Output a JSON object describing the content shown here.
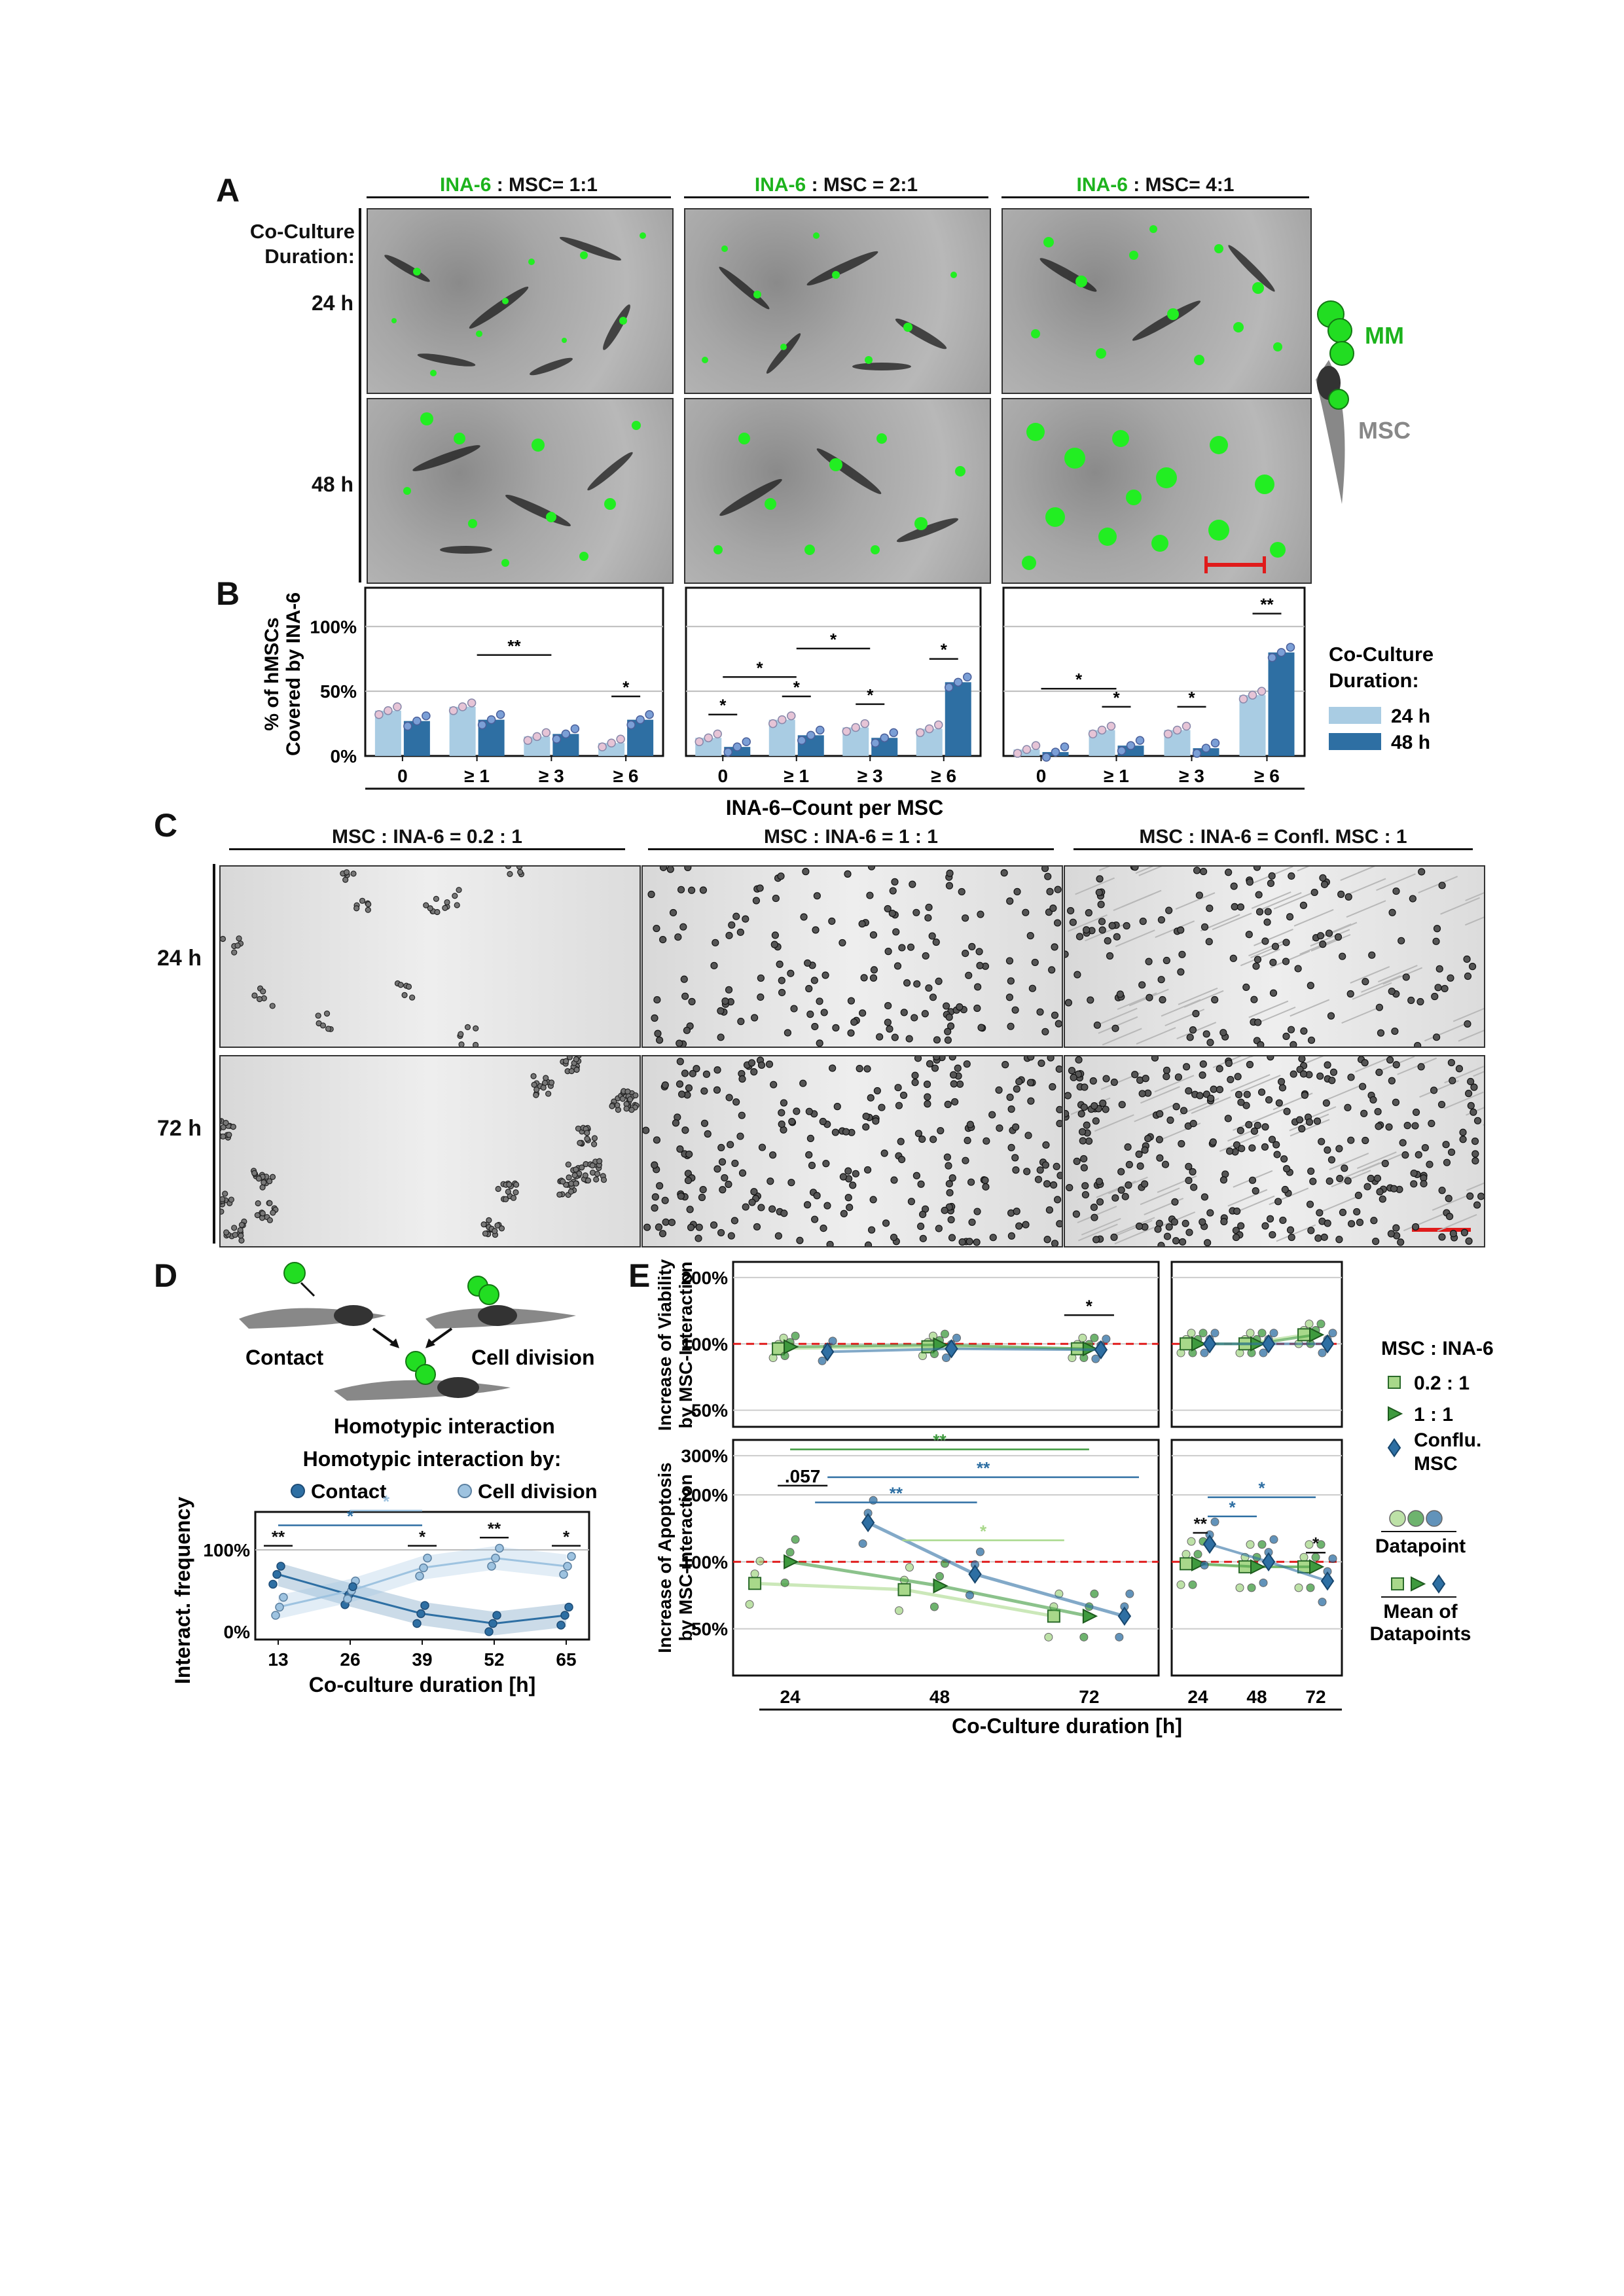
{
  "panel_labels": {
    "a": "A",
    "b": "B",
    "c": "C",
    "d": "D",
    "e": "E"
  },
  "panelA": {
    "ratio_prefix": "INA-6",
    "ratios": [
      " : MSC= 1:1",
      " : MSC = 2:1",
      " : MSC= 4:1"
    ],
    "row_header": [
      "Co-Culture",
      "Duration:"
    ],
    "rows": [
      "24 h",
      "48 h"
    ],
    "schematic": {
      "mm_label": "MM",
      "msc_label": "MSC"
    },
    "colors": {
      "ina6": "#1db31d",
      "scale_bar": "#e01b1b"
    }
  },
  "panelB": {
    "ylabel_line1": "% of hMSCs",
    "ylabel_line2": "Covered by INA-6",
    "yticks": [
      "100%",
      "50%",
      "0%"
    ],
    "xticks": [
      "0",
      "≥ 1",
      "≥ 3",
      "≥ 6"
    ],
    "xlabel": "INA-6–Count per MSC",
    "legend": {
      "title1": "Co-Culture",
      "title2": "Duration:",
      "items": [
        "24 h",
        "48 h"
      ]
    },
    "colors": {
      "h24": "#a9cce3",
      "h48": "#2e6fa3"
    }
  },
  "panelC": {
    "headers": [
      "MSC : INA-6 = 0.2 : 1",
      "MSC : INA-6 = 1 : 1",
      "MSC : INA-6 = Confl. MSC : 1"
    ],
    "rows": [
      "24 h",
      "72 h"
    ]
  },
  "panelD": {
    "schematic": {
      "contact": "Contact",
      "division": "Cell division",
      "homotypic": "Homotypic interaction"
    },
    "legend_title": "Homotypic interaction by:",
    "legend_items": [
      "Contact",
      "Cell division"
    ],
    "ylabel": "Interact. frequency",
    "yticks": [
      "100%",
      "0%"
    ],
    "xticks": [
      "13",
      "26",
      "39",
      "52",
      "65"
    ],
    "xlabel": "Co-culture duration [h]",
    "sig": [
      "**",
      "*",
      "**",
      "*",
      "*",
      "*"
    ],
    "colors": {
      "contact": "#2e6fa3",
      "division": "#9ec3e0"
    }
  },
  "panelE": {
    "ylabel_top": [
      "Increase of Viability",
      "by MSC-Interaction"
    ],
    "ylabel_bottom": [
      "Increase of Apoptosis",
      "by MSC-Interaction"
    ],
    "yticks_top": [
      "200%",
      "100%",
      "50%"
    ],
    "yticks_bottom": [
      "300%",
      "200%",
      "100%",
      "50%"
    ],
    "xticks_left": [
      "24",
      "48",
      "72"
    ],
    "xticks_right": [
      "24",
      "48",
      "72"
    ],
    "xlabel": "Co-Culture duration [h]",
    "annot_057": ".057",
    "sig_left": [
      "**",
      "**",
      "**",
      "*"
    ],
    "sig_right": [
      "**",
      "*",
      "*",
      "*"
    ],
    "sig_top": "*",
    "legend": {
      "title": "MSC : INA-6",
      "items": [
        "0.2 : 1",
        "1 : 1",
        "Conflu.",
        "MSC"
      ],
      "datapoint": "Datapoint",
      "mean": [
        "Mean of",
        "Datapoints"
      ]
    },
    "colors": {
      "c02": "#a8d88a",
      "c1": "#3e9a3e",
      "conf": "#2e6fa3",
      "ref_line": "#e01b1b"
    }
  }
}
